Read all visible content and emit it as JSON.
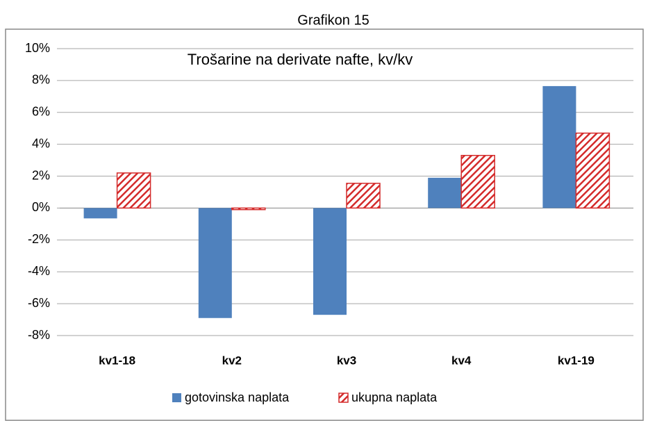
{
  "header": "Grafikon 15",
  "chart_data": {
    "type": "bar",
    "title": "Trošarine na derivate nafte, kv/kv",
    "categories": [
      "kv1-18",
      "kv2",
      "kv3",
      "kv4",
      "kv1-19"
    ],
    "series": [
      {
        "name": "gotovinska naplata",
        "color": "#4f81bd",
        "pattern": "solid",
        "values": [
          -0.65,
          -6.9,
          -6.7,
          1.9,
          7.65
        ]
      },
      {
        "name": "ukupna naplata",
        "color": "#d42a2a",
        "pattern": "hatch",
        "values": [
          2.2,
          -0.1,
          1.55,
          3.3,
          4.7
        ]
      }
    ],
    "ylim": [
      -8,
      10
    ],
    "yticks": [
      {
        "value": -8,
        "label": "-8%"
      },
      {
        "value": -6,
        "label": "-6%"
      },
      {
        "value": -4,
        "label": "-4%"
      },
      {
        "value": -2,
        "label": "-2%"
      },
      {
        "value": 0,
        "label": "0%"
      },
      {
        "value": 2,
        "label": "2%"
      },
      {
        "value": 4,
        "label": "4%"
      },
      {
        "value": 6,
        "label": "6%"
      },
      {
        "value": 8,
        "label": "8%"
      },
      {
        "value": 10,
        "label": "10%"
      }
    ],
    "grid": true,
    "legend": "bottom"
  }
}
